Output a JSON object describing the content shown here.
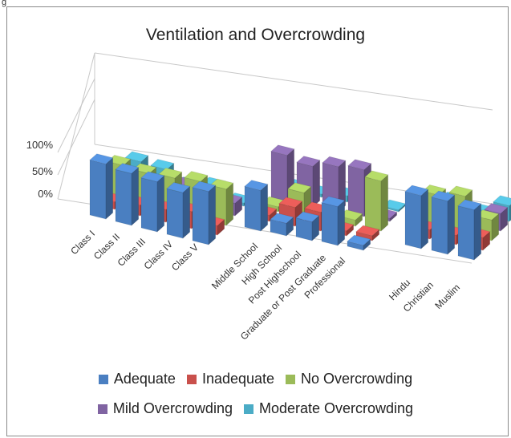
{
  "header_caption": "g",
  "colors": {
    "adequate": "#4a7fc1",
    "inadequate": "#c9504c",
    "no_overcrowding": "#9bbb59",
    "mild_overcrowding": "#8064a2",
    "moderate_overcrowding": "#4bacc6"
  },
  "legend": [
    {
      "label": "Adequate",
      "color_key": "adequate"
    },
    {
      "label": "Inadequate",
      "color_key": "inadequate"
    },
    {
      "label": "No Overcrowding",
      "color_key": "no_overcrowding"
    },
    {
      "label": "Mild Overcrowding",
      "color_key": "mild_overcrowding"
    },
    {
      "label": "Moderate Overcrowding",
      "color_key": "moderate_overcrowding"
    }
  ],
  "chart_data": {
    "type": "bar",
    "subtype": "3d-clustered-column",
    "title": "Ventilation and Overcrowding",
    "ylim": [
      0,
      100
    ],
    "y_ticks": [
      "100%",
      "50%",
      "0%"
    ],
    "grid": false,
    "legend_position": "bottom",
    "categories": [
      "Class I",
      "Class II",
      "Class III",
      "Class IV",
      "Class V",
      "Middle School",
      "High School",
      "Post Highschool",
      "Graduate or Post Graduate",
      "Professional",
      "Hindu",
      "Christian",
      "Muslim"
    ],
    "series": [
      {
        "name": "Adequate",
        "values": [
          88,
          83,
          80,
          73,
          85,
          65,
          20,
          30,
          62,
          8,
          85,
          85,
          80
        ]
      },
      {
        "name": "Inadequate",
        "values": [
          12,
          17,
          20,
          27,
          15,
          10,
          30,
          30,
          8,
          8,
          15,
          15,
          20
        ]
      },
      {
        "name": "No Overcrowding",
        "values": [
          55,
          52,
          55,
          60,
          58,
          8,
          38,
          10,
          10,
          80,
          55,
          62,
          33
        ]
      },
      {
        "name": "Mild Overcrowding",
        "values": [
          15,
          20,
          28,
          20,
          20,
          75,
          65,
          72,
          75,
          5,
          15,
          15,
          28
        ]
      },
      {
        "name": "Moderate Overcrowding",
        "values": [
          30,
          28,
          10,
          20,
          5,
          8,
          5,
          10,
          8,
          3,
          13,
          5,
          25
        ]
      }
    ]
  }
}
